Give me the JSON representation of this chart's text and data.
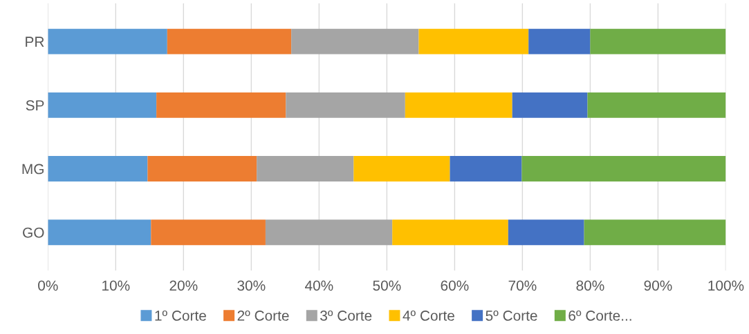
{
  "chart_data": {
    "type": "bar",
    "orientation": "horizontal",
    "stacked": true,
    "categories": [
      "PR",
      "SP",
      "MG",
      "GO"
    ],
    "series": [
      {
        "name": "1º Corte",
        "color": "#5b9bd5",
        "values": [
          17.6,
          16.0,
          14.7,
          15.2
        ]
      },
      {
        "name": "2º Corte",
        "color": "#ed7d31",
        "values": [
          18.3,
          19.1,
          16.1,
          16.9
        ]
      },
      {
        "name": "3º Corte",
        "color": "#a5a5a5",
        "values": [
          18.8,
          17.6,
          14.3,
          18.7
        ]
      },
      {
        "name": "4º Corte",
        "color": "#ffc000",
        "values": [
          16.2,
          15.8,
          14.2,
          17.1
        ]
      },
      {
        "name": "5º Corte",
        "color": "#4472c4",
        "values": [
          9.1,
          11.1,
          10.6,
          11.2
        ]
      },
      {
        "name": "6º Corte...",
        "color": "#70ad47",
        "values": [
          20.0,
          20.4,
          30.1,
          20.9
        ]
      }
    ],
    "xlim": [
      0,
      100
    ],
    "xticks": [
      {
        "value": 0,
        "label": "0%"
      },
      {
        "value": 10,
        "label": "10%"
      },
      {
        "value": 20,
        "label": "20%"
      },
      {
        "value": 30,
        "label": "30%"
      },
      {
        "value": 40,
        "label": "40%"
      },
      {
        "value": 50,
        "label": "50%"
      },
      {
        "value": 60,
        "label": "60%"
      },
      {
        "value": 70,
        "label": "70%"
      },
      {
        "value": 80,
        "label": "80%"
      },
      {
        "value": 90,
        "label": "90%"
      },
      {
        "value": 100,
        "label": "100%"
      }
    ],
    "grid": "x",
    "legend": "bottom"
  }
}
